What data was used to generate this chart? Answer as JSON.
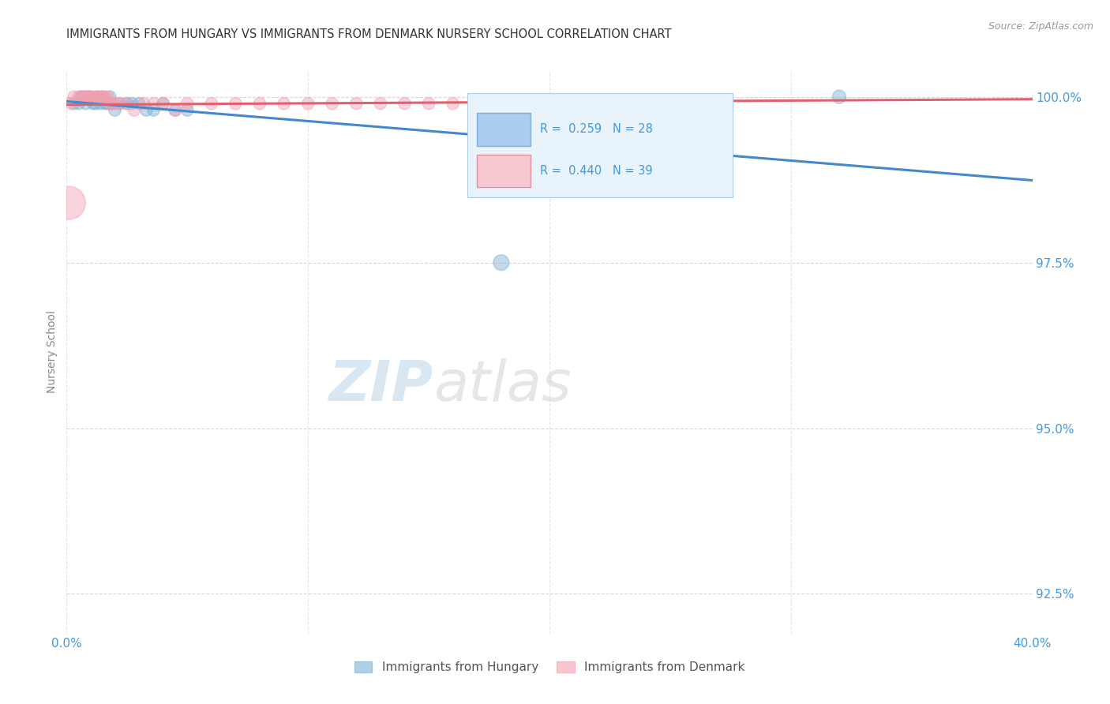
{
  "title": "IMMIGRANTS FROM HUNGARY VS IMMIGRANTS FROM DENMARK NURSERY SCHOOL CORRELATION CHART",
  "source": "Source: ZipAtlas.com",
  "ylabel": "Nursery School",
  "xlim": [
    0.0,
    0.4
  ],
  "ylim": [
    0.919,
    1.004
  ],
  "yticks": [
    0.925,
    0.95,
    0.975,
    1.0
  ],
  "ytick_labels": [
    "92.5%",
    "95.0%",
    "97.5%",
    "100.0%"
  ],
  "xticks": [
    0.0,
    0.1,
    0.2,
    0.3,
    0.4
  ],
  "xtick_labels": [
    "0.0%",
    "",
    "",
    "",
    "40.0%"
  ],
  "hungary_R": 0.259,
  "hungary_N": 28,
  "denmark_R": 0.44,
  "denmark_N": 39,
  "hungary_color": "#7bafd4",
  "denmark_color": "#f4a0b0",
  "hungary_line_color": "#4488cc",
  "denmark_line_color": "#e06070",
  "hungary_scatter_x": [
    0.003,
    0.005,
    0.006,
    0.007,
    0.008,
    0.009,
    0.01,
    0.011,
    0.012,
    0.013,
    0.014,
    0.015,
    0.016,
    0.017,
    0.018,
    0.019,
    0.02,
    0.022,
    0.025,
    0.027,
    0.03,
    0.033,
    0.036,
    0.04,
    0.045,
    0.05,
    0.18,
    0.32
  ],
  "hungary_scatter_y": [
    0.999,
    0.999,
    1.0,
    1.0,
    0.999,
    1.0,
    1.0,
    0.999,
    0.999,
    1.0,
    0.999,
    1.0,
    0.999,
    0.999,
    1.0,
    0.999,
    0.998,
    0.999,
    0.999,
    0.999,
    0.999,
    0.998,
    0.998,
    0.999,
    0.998,
    0.998,
    0.975,
    1.0
  ],
  "hungary_scatter_sizes": [
    120,
    120,
    120,
    120,
    120,
    120,
    120,
    120,
    120,
    120,
    120,
    120,
    120,
    120,
    120,
    120,
    120,
    120,
    120,
    120,
    120,
    120,
    120,
    120,
    120,
    120,
    200,
    150
  ],
  "denmark_scatter_x": [
    0.001,
    0.002,
    0.003,
    0.005,
    0.006,
    0.007,
    0.008,
    0.009,
    0.01,
    0.011,
    0.012,
    0.013,
    0.014,
    0.015,
    0.016,
    0.017,
    0.018,
    0.019,
    0.02,
    0.022,
    0.025,
    0.028,
    0.032,
    0.036,
    0.04,
    0.045,
    0.05,
    0.06,
    0.07,
    0.08,
    0.09,
    0.1,
    0.11,
    0.12,
    0.13,
    0.14,
    0.15,
    0.16,
    0.17
  ],
  "denmark_scatter_y": [
    0.984,
    0.999,
    1.0,
    1.0,
    1.0,
    1.0,
    1.0,
    1.0,
    1.0,
    1.0,
    1.0,
    1.0,
    1.0,
    1.0,
    1.0,
    1.0,
    0.999,
    0.999,
    0.999,
    0.999,
    0.999,
    0.998,
    0.999,
    0.999,
    0.999,
    0.998,
    0.999,
    0.999,
    0.999,
    0.999,
    0.999,
    0.999,
    0.999,
    0.999,
    0.999,
    0.999,
    0.999,
    0.999,
    0.999
  ],
  "denmark_scatter_sizes": [
    900,
    120,
    120,
    120,
    120,
    120,
    120,
    120,
    120,
    120,
    120,
    120,
    120,
    120,
    120,
    120,
    120,
    120,
    120,
    120,
    120,
    120,
    120,
    120,
    120,
    120,
    120,
    120,
    120,
    120,
    120,
    120,
    120,
    120,
    120,
    120,
    120,
    120,
    120
  ],
  "background_color": "#ffffff",
  "grid_color": "#cccccc",
  "title_color": "#333333",
  "axis_label_color": "#4499dd",
  "watermark_zip": "ZIP",
  "watermark_atlas": "atlas",
  "legend_box_color": "#e8f3fb",
  "legend_box_edge": "#aacce8"
}
